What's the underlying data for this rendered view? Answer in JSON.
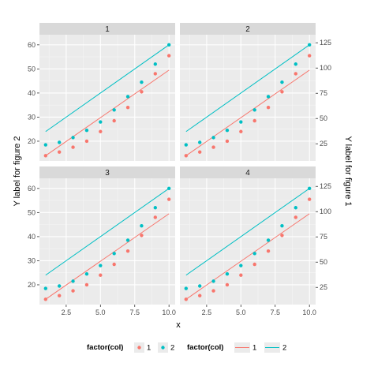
{
  "colors": {
    "series1": "#F8766D",
    "series2": "#00BFC4",
    "panel_bg": "#EBEBEB",
    "strip_bg": "#D9D9D9",
    "grid_major": "#FFFFFF",
    "grid_minor": "#F5F5F5"
  },
  "chart_data": {
    "type": "scatter",
    "facets": [
      "1",
      "2",
      "3",
      "4"
    ],
    "xlabel": "x",
    "ylabel_left": "Y label for figure 2",
    "ylabel_right": "Y label for figure 1",
    "x_ticks": [
      2.5,
      5.0,
      7.5,
      10.0
    ],
    "x_tick_labels": [
      "2.5",
      "5.0",
      "7.5",
      "10.0"
    ],
    "xlim": [
      0.55,
      10.45
    ],
    "left_axis": {
      "ticks": [
        20,
        30,
        40,
        50,
        60
      ],
      "labels": [
        "20",
        "30",
        "40",
        "50",
        "60"
      ],
      "ylim": [
        11.8,
        64.2
      ]
    },
    "right_axis": {
      "ticks": [
        25,
        50,
        75,
        100,
        125
      ],
      "labels": [
        "25",
        "50",
        "75",
        "100",
        "125"
      ],
      "ylim": [
        8,
        133
      ]
    },
    "x": [
      1,
      2,
      3,
      4,
      5,
      6,
      7,
      8,
      9,
      10
    ],
    "points": [
      {
        "name": "1",
        "y": [
          14,
          15.5,
          17.5,
          20,
          24,
          28.5,
          34,
          40.5,
          48,
          55.5
        ]
      },
      {
        "name": "2",
        "y": [
          18.5,
          19.5,
          21.5,
          24.5,
          28,
          33,
          38.5,
          44.5,
          52,
          60
        ]
      }
    ],
    "lines": [
      {
        "name": "1",
        "x": [
          1,
          10
        ],
        "y": [
          14,
          49.5
        ]
      },
      {
        "name": "2",
        "x": [
          1,
          10
        ],
        "y": [
          24,
          60
        ]
      }
    ],
    "legend": {
      "position": "bottom",
      "groups": [
        {
          "title": "factor(col)",
          "kind": "points",
          "entries": [
            "1",
            "2"
          ]
        },
        {
          "title": "factor(col)",
          "kind": "lines",
          "entries": [
            "1",
            "2"
          ]
        }
      ]
    },
    "grid": true
  }
}
